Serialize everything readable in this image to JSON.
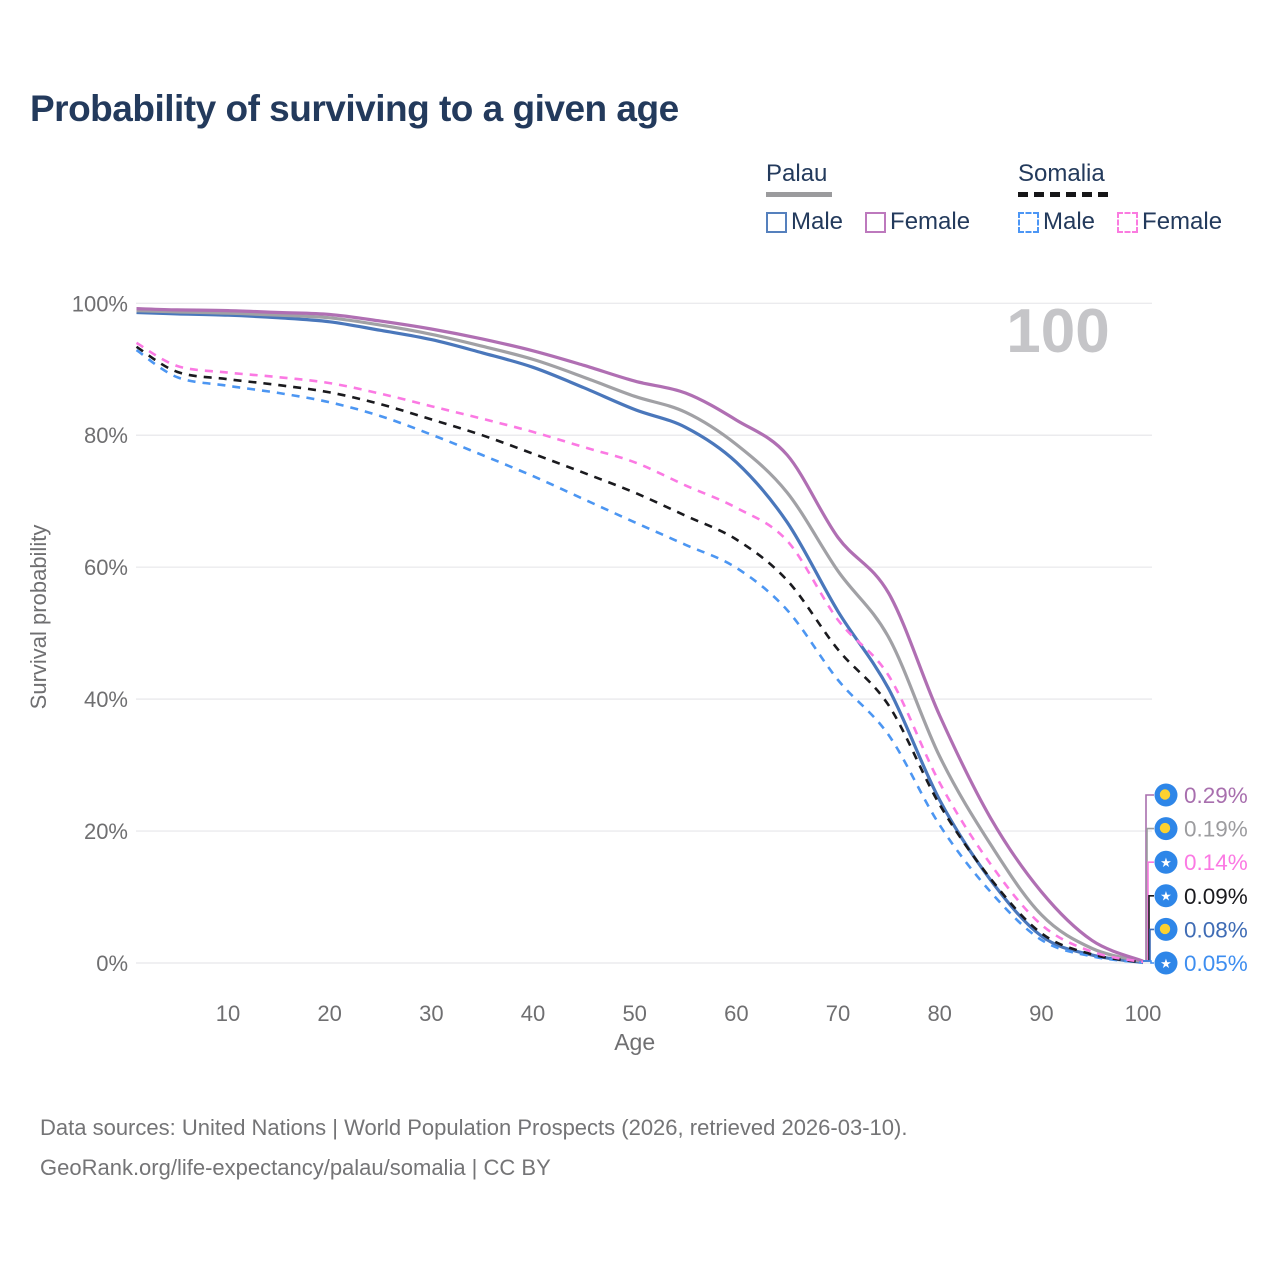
{
  "title": "Probability of surviving to a given age",
  "watermark": "100",
  "legend": {
    "groups": [
      {
        "label": "Palau",
        "line_style": "solid",
        "items": [
          {
            "label": "Male",
            "color": "#4a77bb"
          },
          {
            "label": "Female",
            "color": "#b06fb3"
          }
        ]
      },
      {
        "label": "Somalia",
        "line_style": "dashed",
        "items": [
          {
            "label": "Male",
            "color": "#4c96f2"
          },
          {
            "label": "Female",
            "color": "#fb79e3"
          }
        ]
      }
    ]
  },
  "chart_data": {
    "type": "line",
    "title": "Probability of surviving to a given age",
    "xlabel": "Age",
    "ylabel": "Survival probability",
    "xlim": [
      1,
      100
    ],
    "ylim": [
      0,
      100
    ],
    "x_ticks": [
      10,
      20,
      30,
      40,
      50,
      60,
      70,
      80,
      90,
      100
    ],
    "y_ticks": [
      "0%",
      "20%",
      "40%",
      "60%",
      "80%",
      "100%"
    ],
    "grid": "horizontal",
    "legend_position": "top-right",
    "highlight_age": 100,
    "x": [
      1,
      5,
      10,
      15,
      20,
      25,
      30,
      35,
      40,
      45,
      50,
      55,
      60,
      65,
      70,
      75,
      80,
      85,
      90,
      95,
      100
    ],
    "series": [
      {
        "name": "Palau Male",
        "country": "palau",
        "style": "solid",
        "color": "#4a77bb",
        "end_label": "0.08%",
        "values": [
          98.6,
          98.4,
          98.2,
          97.8,
          97.2,
          95.9,
          94.5,
          92.5,
          90.3,
          87.2,
          83.9,
          81.2,
          75.9,
          66.8,
          53.3,
          41.5,
          24.7,
          12.6,
          4.1,
          1.2,
          0.08
        ]
      },
      {
        "name": "Palau Both sexes",
        "country": "palau",
        "style": "solid",
        "color": "#a1a1a5",
        "end_label": "0.19%",
        "values": [
          98.9,
          98.7,
          98.5,
          98.2,
          97.8,
          96.7,
          95.3,
          93.5,
          91.5,
          88.8,
          85.9,
          83.5,
          78.6,
          71.3,
          59.4,
          49.3,
          31.3,
          18.0,
          7.3,
          2.2,
          0.19
        ]
      },
      {
        "name": "Palau Female",
        "country": "palau",
        "style": "solid",
        "color": "#b06fb3",
        "end_label": "0.29%",
        "values": [
          99.2,
          99.0,
          98.9,
          98.6,
          98.3,
          97.3,
          96.1,
          94.6,
          92.8,
          90.6,
          88.2,
          86.4,
          82.3,
          77.0,
          64.5,
          56.0,
          37.5,
          22.0,
          10.8,
          3.4,
          0.29
        ]
      },
      {
        "name": "Somalia Male",
        "country": "somalia",
        "style": "dashed",
        "color": "#4c96f2",
        "end_label": "0.05%",
        "values": [
          92.9,
          88.8,
          87.5,
          86.4,
          85.0,
          82.9,
          80.1,
          77.0,
          73.8,
          70.3,
          66.8,
          63.4,
          59.9,
          53.5,
          42.9,
          34.5,
          20.9,
          10.8,
          3.5,
          1.0,
          0.05
        ]
      },
      {
        "name": "Somalia Both sexes",
        "country": "somalia",
        "style": "dashed",
        "color": "#1a1a1e",
        "end_label": "0.09%",
        "values": [
          93.4,
          89.6,
          88.5,
          87.6,
          86.5,
          84.7,
          82.4,
          80.0,
          77.2,
          74.3,
          71.3,
          67.8,
          64.2,
          58.0,
          47.5,
          39.0,
          24.0,
          12.8,
          4.5,
          1.3,
          0.09
        ]
      },
      {
        "name": "Somalia Female",
        "country": "somalia",
        "style": "dashed",
        "color": "#fb79e3",
        "end_label": "0.14%",
        "values": [
          94.0,
          90.5,
          89.5,
          88.8,
          87.9,
          86.3,
          84.4,
          82.5,
          80.5,
          78.2,
          75.9,
          72.4,
          69.0,
          64.0,
          52.0,
          43.5,
          27.3,
          15.0,
          5.8,
          1.7,
          0.14
        ]
      }
    ],
    "end_labels": [
      {
        "value": "0.29%",
        "flag": "palau",
        "text_color": "#a86fae"
      },
      {
        "value": "0.19%",
        "flag": "palau",
        "text_color": "#9c9c9f"
      },
      {
        "value": "0.14%",
        "flag": "somalia",
        "text_color": "#fb79e3"
      },
      {
        "value": "0.09%",
        "flag": "somalia",
        "text_color": "#1a1a1e"
      },
      {
        "value": "0.08%",
        "flag": "palau",
        "text_color": "#3f6cb5"
      },
      {
        "value": "0.05%",
        "flag": "somalia",
        "text_color": "#3e8ef0"
      }
    ]
  },
  "flag_icon": {
    "circle_color": "#2e86e8",
    "palau_dot_color": "#fcd12f",
    "somalia_star_color": "#ffffff"
  },
  "footer": {
    "line1": "Data sources: United Nations | World Population Prospects (2026, retrieved 2026-03-10).",
    "line2": "GeoRank.org/life-expectancy/palau/somalia | CC BY"
  }
}
